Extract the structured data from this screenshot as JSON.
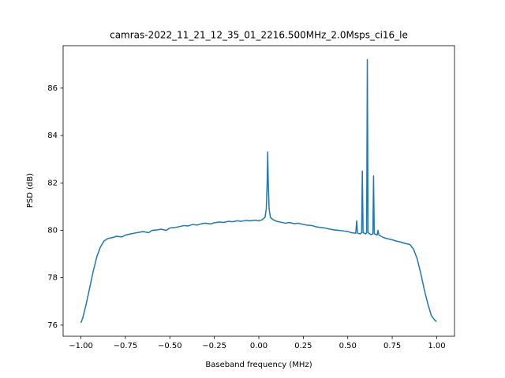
{
  "chart_data": {
    "type": "line",
    "title": "camras-2022_11_21_12_35_01_2216.500MHz_2.0Msps_ci16_le",
    "x_label": "Baseband frequency (MHz)",
    "y_label": "PSD (dB)",
    "color": "#1f77b4",
    "x": [
      -1.0,
      -0.99,
      -0.97,
      -0.95,
      -0.93,
      -0.91,
      -0.89,
      -0.87,
      -0.85,
      -0.82,
      -0.8,
      -0.77,
      -0.75,
      -0.72,
      -0.7,
      -0.67,
      -0.65,
      -0.62,
      -0.6,
      -0.57,
      -0.55,
      -0.52,
      -0.5,
      -0.47,
      -0.45,
      -0.42,
      -0.4,
      -0.37,
      -0.35,
      -0.32,
      -0.3,
      -0.27,
      -0.25,
      -0.22,
      -0.2,
      -0.17,
      -0.15,
      -0.12,
      -0.1,
      -0.07,
      -0.05,
      -0.02,
      0.0,
      0.02,
      0.035,
      0.042,
      0.047,
      0.05,
      0.053,
      0.058,
      0.065,
      0.08,
      0.1,
      0.12,
      0.15,
      0.17,
      0.2,
      0.22,
      0.25,
      0.27,
      0.3,
      0.32,
      0.35,
      0.37,
      0.4,
      0.42,
      0.45,
      0.47,
      0.5,
      0.52,
      0.545,
      0.55,
      0.555,
      0.57,
      0.578,
      0.582,
      0.586,
      0.6,
      0.606,
      0.61,
      0.614,
      0.63,
      0.641,
      0.645,
      0.649,
      0.665,
      0.67,
      0.675,
      0.7,
      0.72,
      0.75,
      0.77,
      0.8,
      0.82,
      0.85,
      0.87,
      0.89,
      0.91,
      0.93,
      0.95,
      0.97,
      0.99,
      1.0
    ],
    "values": [
      76.1,
      76.3,
      76.9,
      77.6,
      78.3,
      78.9,
      79.3,
      79.55,
      79.65,
      79.7,
      79.75,
      79.72,
      79.8,
      79.85,
      79.88,
      79.92,
      79.95,
      79.9,
      80.0,
      80.02,
      80.05,
      80.0,
      80.1,
      80.12,
      80.15,
      80.2,
      80.18,
      80.25,
      80.22,
      80.28,
      80.3,
      80.27,
      80.32,
      80.35,
      80.33,
      80.38,
      80.36,
      80.4,
      80.38,
      80.42,
      80.4,
      80.43,
      80.4,
      80.45,
      80.55,
      80.9,
      82.0,
      83.3,
      82.0,
      80.9,
      80.55,
      80.45,
      80.38,
      80.35,
      80.3,
      80.33,
      80.28,
      80.3,
      80.25,
      80.22,
      80.2,
      80.15,
      80.12,
      80.1,
      80.05,
      80.02,
      80.0,
      79.98,
      79.95,
      79.9,
      79.88,
      80.4,
      79.88,
      79.85,
      79.9,
      82.5,
      79.9,
      79.85,
      79.9,
      87.2,
      79.9,
      79.82,
      79.85,
      82.3,
      79.85,
      79.8,
      80.0,
      79.8,
      79.7,
      79.65,
      79.6,
      79.55,
      79.5,
      79.45,
      79.4,
      79.2,
      78.8,
      78.2,
      77.5,
      76.9,
      76.4,
      76.2,
      76.15
    ],
    "xlim": [
      -1.1,
      1.1
    ],
    "ylim": [
      75.53,
      87.79
    ],
    "xticks": [
      {
        "value": -1,
        "label": "−1.00"
      },
      {
        "value": -0.75,
        "label": "−0.75"
      },
      {
        "value": -0.5,
        "label": "−0.50"
      },
      {
        "value": -0.25,
        "label": "−0.25"
      },
      {
        "value": 0,
        "label": "0.00"
      },
      {
        "value": 0.25,
        "label": "0.25"
      },
      {
        "value": 0.5,
        "label": "0.50"
      },
      {
        "value": 0.75,
        "label": "0.75"
      },
      {
        "value": 1,
        "label": "1.00"
      }
    ],
    "yticks": [
      76,
      78,
      80,
      82,
      84,
      86
    ]
  }
}
